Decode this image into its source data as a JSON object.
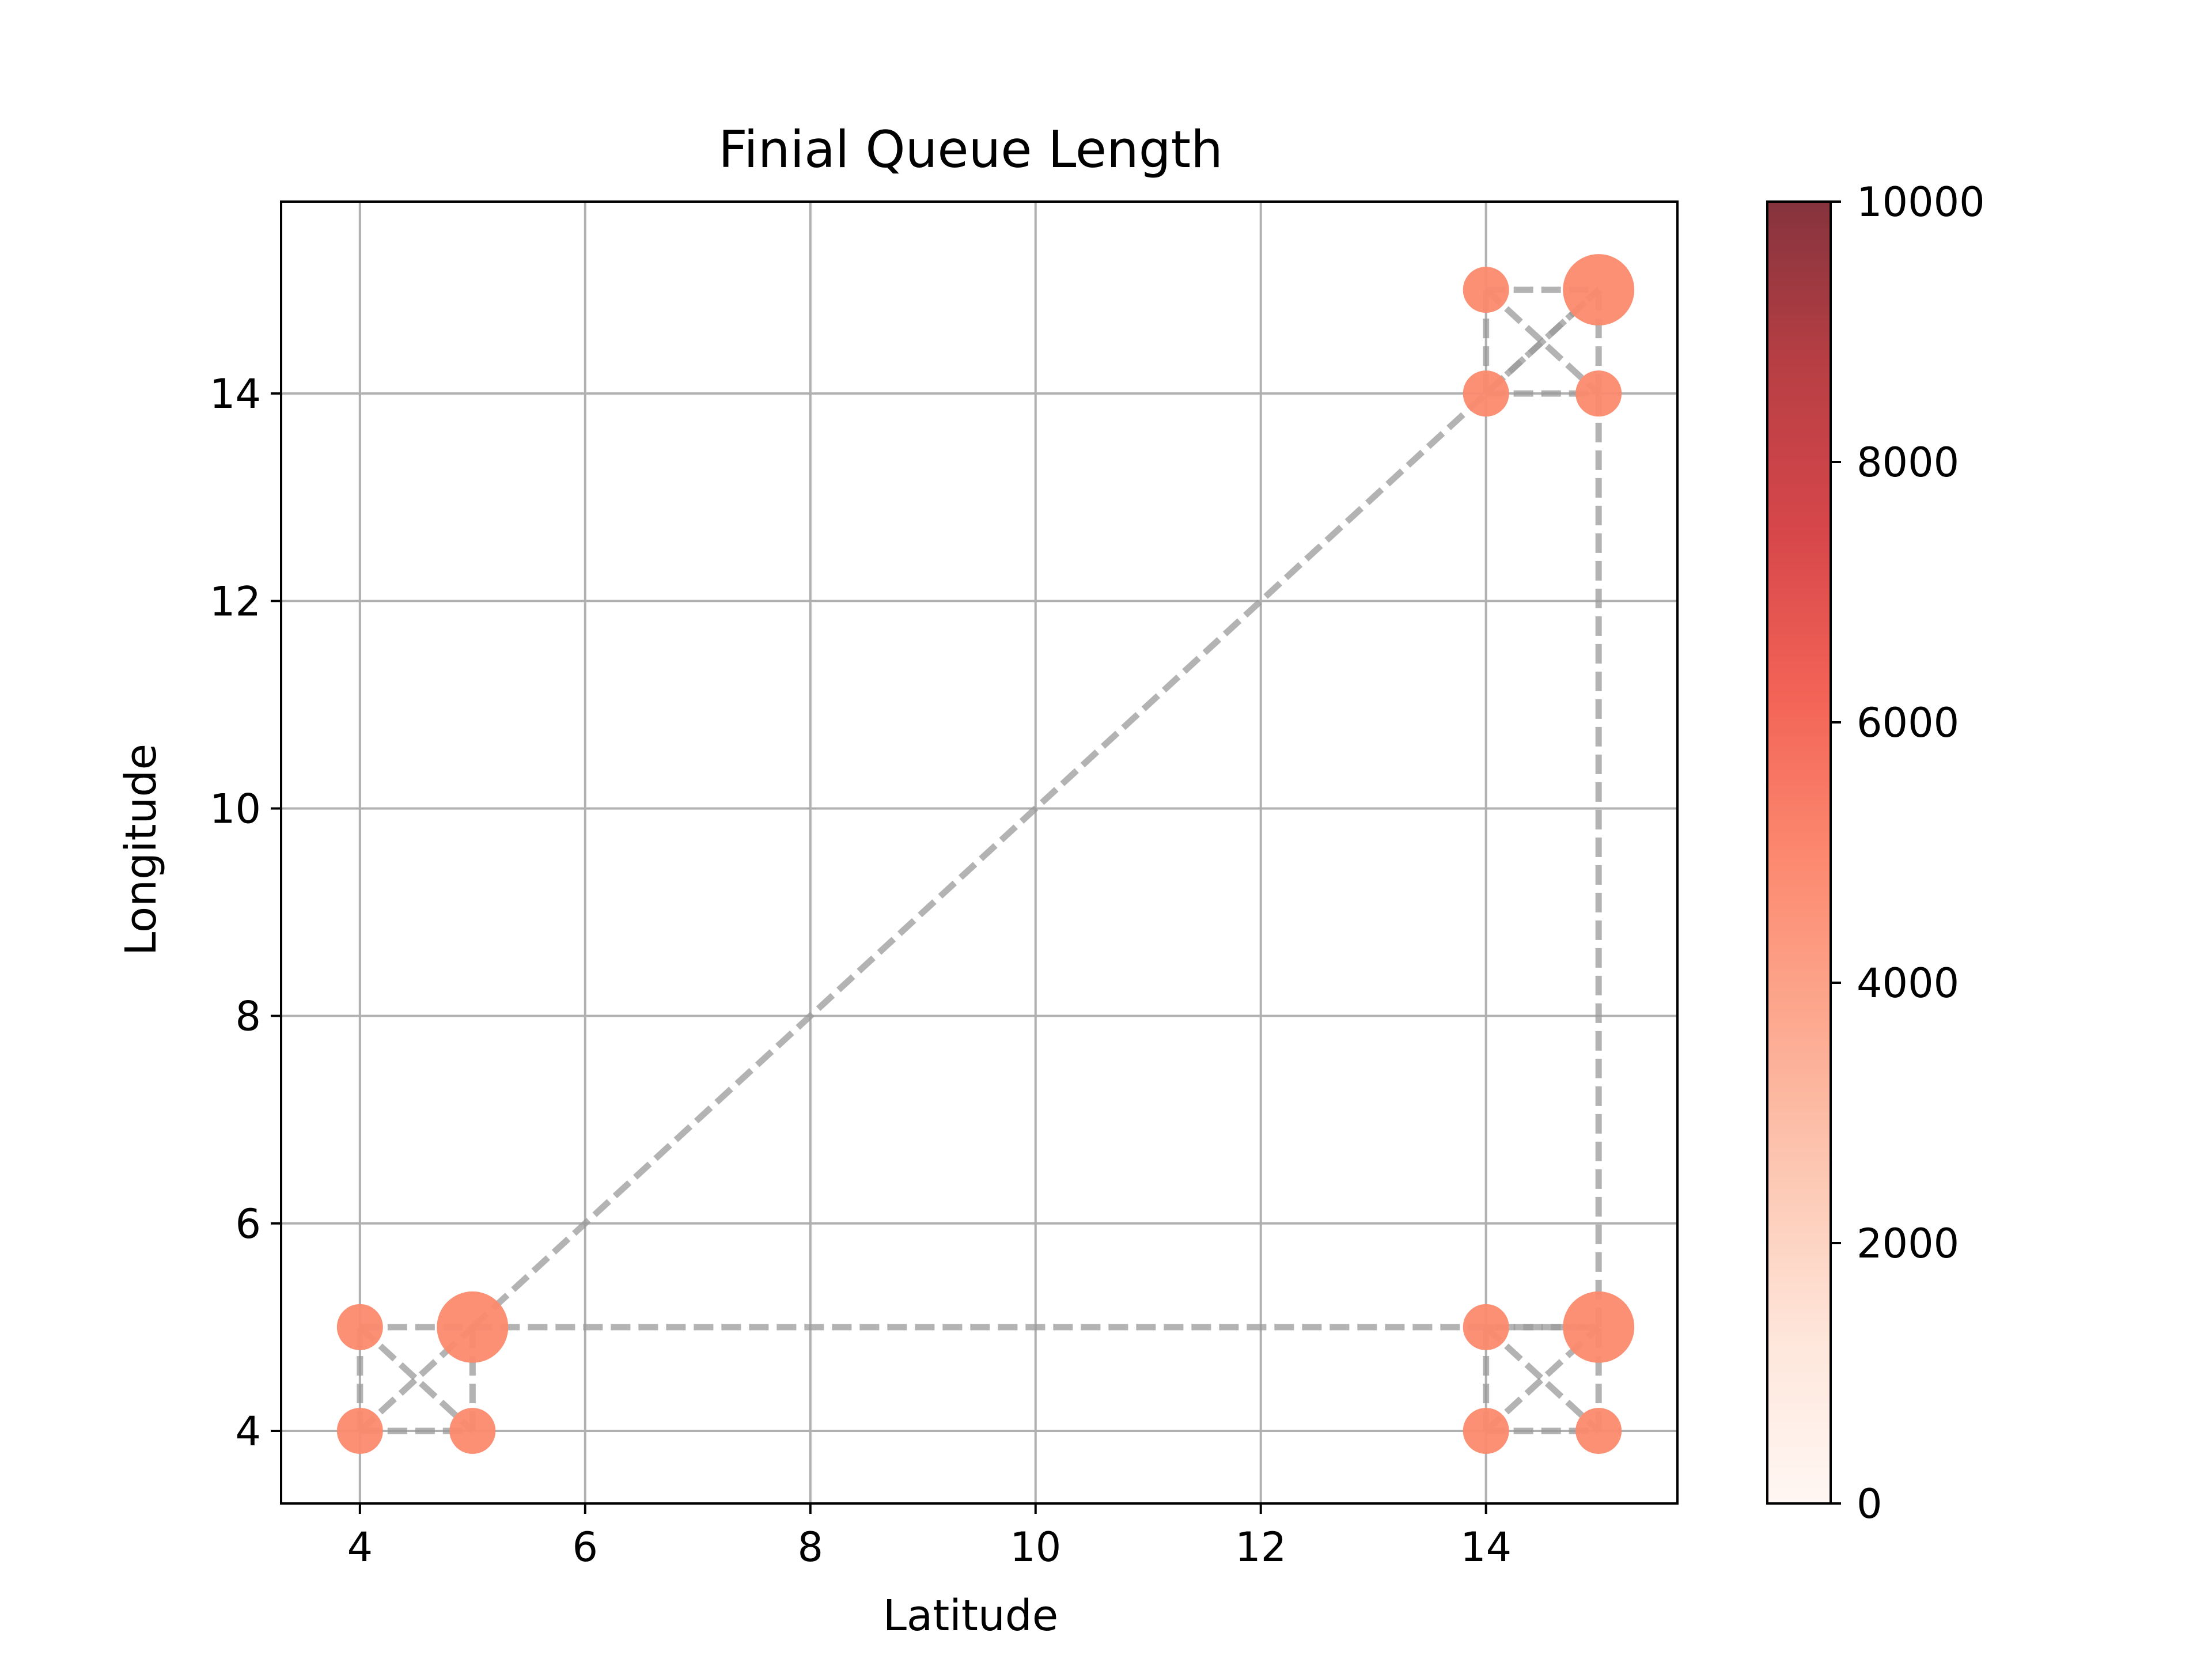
{
  "chart_data": {
    "type": "scatter",
    "title": "Finial Queue Length",
    "xlabel": "Latitude",
    "ylabel": "Longitude",
    "xlim": [
      3.3,
      15.7
    ],
    "ylim": [
      3.3,
      15.85
    ],
    "xticks": [
      4,
      6,
      8,
      10,
      12,
      14
    ],
    "yticks": [
      4,
      6,
      8,
      10,
      12,
      14
    ],
    "grid": true,
    "node_color": "#fb8a6e",
    "edge_color": "#999999",
    "points": [
      {
        "x": 4,
        "y": 4,
        "value": 4400
      },
      {
        "x": 5,
        "y": 4,
        "value": 4400
      },
      {
        "x": 4,
        "y": 5,
        "value": 4400
      },
      {
        "x": 5,
        "y": 5,
        "value": 4400
      },
      {
        "x": 14,
        "y": 4,
        "value": 4400
      },
      {
        "x": 15,
        "y": 4,
        "value": 4400
      },
      {
        "x": 14,
        "y": 5,
        "value": 4400
      },
      {
        "x": 15,
        "y": 5,
        "value": 4400
      },
      {
        "x": 14,
        "y": 14,
        "value": 4400
      },
      {
        "x": 15,
        "y": 14,
        "value": 4400
      },
      {
        "x": 14,
        "y": 15,
        "value": 4400
      },
      {
        "x": 15,
        "y": 15,
        "value": 4400
      }
    ],
    "marker_sizes": [
      1,
      1,
      1,
      2.4,
      1,
      1,
      1,
      2.4,
      1,
      1,
      1,
      2.4
    ],
    "edges": [
      [
        4,
        4,
        5,
        4
      ],
      [
        4,
        4,
        4,
        5
      ],
      [
        4,
        5,
        5,
        5
      ],
      [
        5,
        4,
        5,
        5
      ],
      [
        4,
        4,
        5,
        5
      ],
      [
        4,
        5,
        5,
        4
      ],
      [
        14,
        4,
        15,
        4
      ],
      [
        14,
        4,
        14,
        5
      ],
      [
        14,
        5,
        15,
        5
      ],
      [
        15,
        4,
        15,
        5
      ],
      [
        14,
        4,
        15,
        5
      ],
      [
        14,
        5,
        15,
        4
      ],
      [
        14,
        14,
        15,
        14
      ],
      [
        14,
        14,
        14,
        15
      ],
      [
        14,
        15,
        15,
        15
      ],
      [
        15,
        14,
        15,
        15
      ],
      [
        14,
        14,
        15,
        15
      ],
      [
        14,
        15,
        15,
        14
      ],
      [
        5,
        5,
        15,
        5
      ],
      [
        15,
        5,
        15,
        14
      ],
      [
        5,
        5,
        15,
        15
      ]
    ],
    "colorbar": {
      "min": 0,
      "max": 10000,
      "ticks": [
        0,
        2000,
        4000,
        6000,
        8000,
        10000
      ],
      "colors": [
        "#fff5f0",
        "#fee0d2",
        "#fcbba1",
        "#fc9272",
        "#fb6a4a",
        "#ef3b2c",
        "#cb181d",
        "#a50f15",
        "#67000d"
      ]
    }
  }
}
